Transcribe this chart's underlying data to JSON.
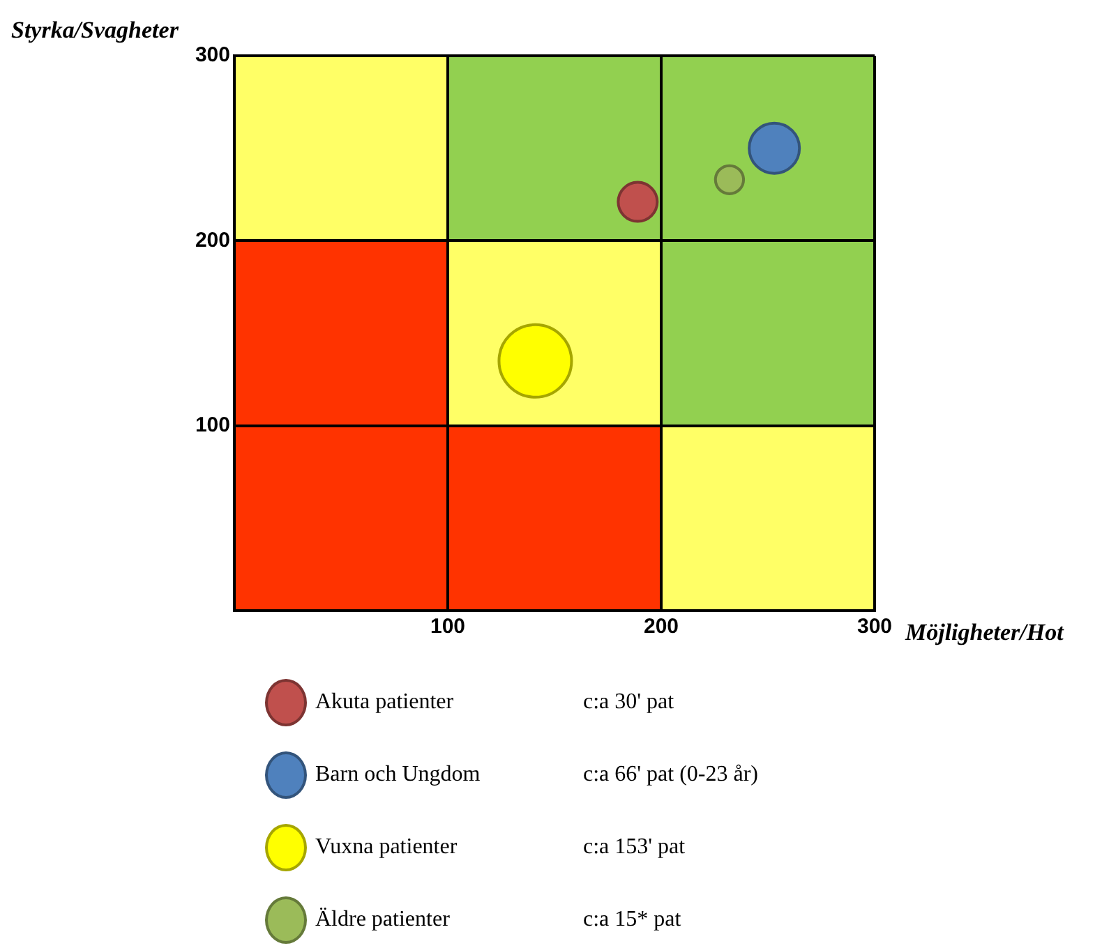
{
  "chart_data": {
    "type": "bubble",
    "xlabel": "Möjligheter/Hot",
    "ylabel": "Styrka/Svagheter",
    "xlim": [
      0,
      300
    ],
    "xticks": [
      {
        "value": 0,
        "label": null
      },
      100,
      200,
      300
    ],
    "ylim": [
      0,
      300
    ],
    "yticks": [
      {
        "value": 0,
        "label": null
      },
      100,
      200,
      300
    ],
    "grid": true,
    "legend": "bottom",
    "series": [
      {
        "name": "Akuta patienter",
        "color": "#c0504d",
        "x": [
          189
        ],
        "values": [
          221
        ],
        "sizes": [
          0.29
        ]
      },
      {
        "name": "Barn och Ungdom",
        "color": "#4f81bd",
        "x": [
          253
        ],
        "values": [
          250
        ],
        "sizes": [
          0.48
        ]
      },
      {
        "name": "Vuxna patienter",
        "color": "#ffff00",
        "x": [
          141
        ],
        "values": [
          135
        ],
        "sizes": [
          1
        ]
      },
      {
        "name": "Äldre patienter",
        "color": "#9bbb59",
        "x": [
          232
        ],
        "values": [
          233
        ],
        "sizes": [
          0.15
        ]
      }
    ],
    "annotations": [
      "c:a 30' pat",
      "c:a 66' pat (0-23 år)",
      "c:a 153' pat",
      "c:a 15* pat"
    ]
  }
}
